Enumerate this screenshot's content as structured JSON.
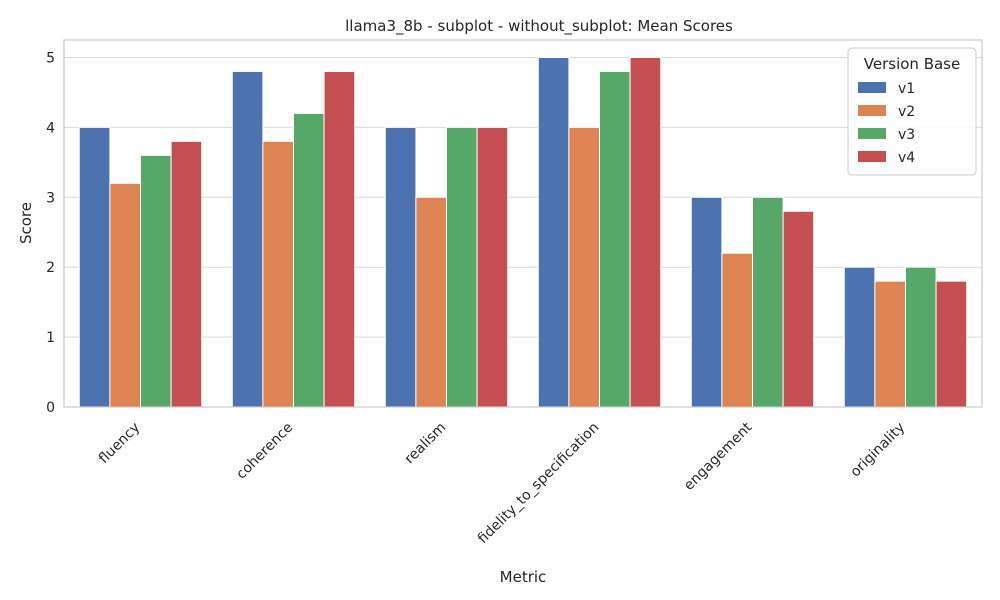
{
  "chart_data": {
    "type": "bar",
    "title": "llama3_8b - subplot - without_subplot: Mean Scores",
    "xlabel": "Metric",
    "ylabel": "Score",
    "ylim": [
      0,
      5.25
    ],
    "yticks": [
      0,
      1,
      2,
      3,
      4,
      5
    ],
    "grid": "horizontal",
    "categories": [
      "fluency",
      "coherence",
      "realism",
      "fidelity_to_specification",
      "engagement",
      "originality"
    ],
    "series": [
      {
        "name": "v1",
        "color": "#4c72b0",
        "values": [
          4.0,
          4.8,
          4.0,
          5.0,
          3.0,
          2.0
        ]
      },
      {
        "name": "v2",
        "color": "#dd8452",
        "values": [
          3.2,
          3.8,
          3.0,
          4.0,
          2.2,
          1.8
        ]
      },
      {
        "name": "v3",
        "color": "#55a868",
        "values": [
          3.6,
          4.2,
          4.0,
          4.8,
          3.0,
          2.0
        ]
      },
      {
        "name": "v4",
        "color": "#c44e52",
        "values": [
          3.8,
          4.8,
          4.0,
          5.0,
          2.8,
          1.8
        ]
      }
    ],
    "legend": {
      "title": "Version Base",
      "placement": "top-right"
    }
  }
}
